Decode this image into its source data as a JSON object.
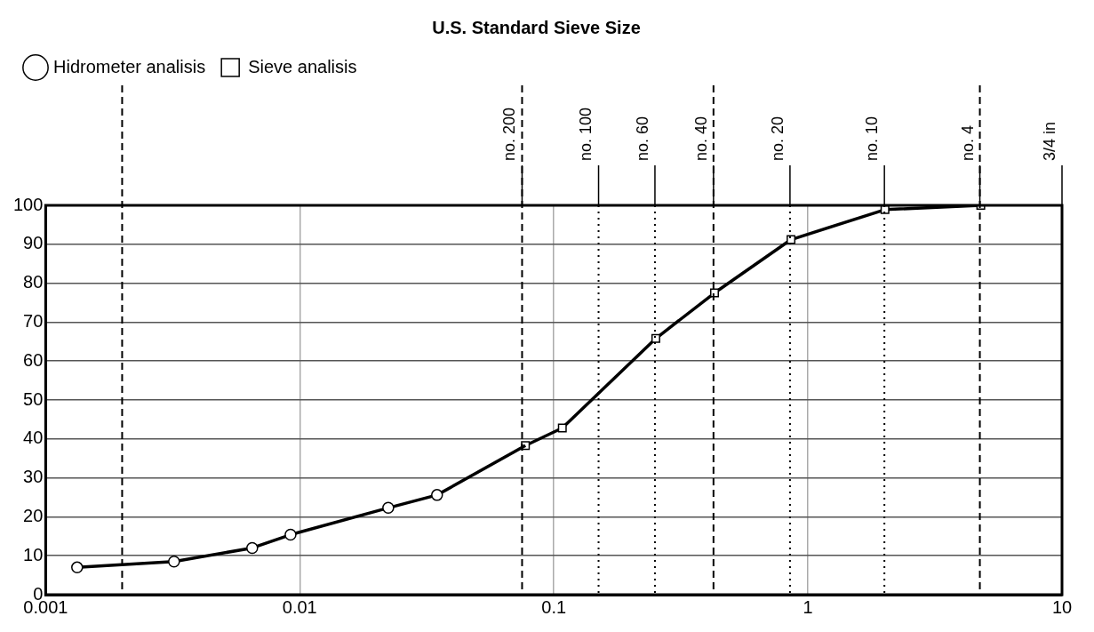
{
  "chart_data": {
    "type": "line",
    "title": "U.S. Standard Sieve Size",
    "xlim": [
      0.001,
      10
    ],
    "xticks": [
      0.001,
      0.01,
      0.1,
      1,
      10
    ],
    "ylim": [
      0,
      100
    ],
    "yticks": [
      0,
      10,
      20,
      30,
      40,
      50,
      60,
      70,
      80,
      90,
      100
    ],
    "log": "x",
    "grid": true,
    "legend": "top left",
    "series": [
      {
        "name": "Hidrometer analisis",
        "color": "#000000",
        "marker": "circle",
        "x": [
          0.00133,
          0.0032,
          0.0065,
          0.0092,
          0.0223,
          0.0347
        ],
        "values": [
          7,
          8.5,
          12,
          15.4,
          22.3,
          25.6
        ]
      },
      {
        "type": "line",
        "color": "#000000",
        "x": [
          0.0347,
          0.0773
        ],
        "values": [
          25.6,
          38.3
        ]
      },
      {
        "name": "Sieve analisis",
        "color": "#000000",
        "marker": "square",
        "x": [
          0.0773,
          0.108,
          0.252,
          0.429,
          0.858,
          2.01,
          4.79
        ],
        "values": [
          38.3,
          42.8,
          65.8,
          77.5,
          91.2,
          98.9,
          100
        ]
      }
    ],
    "ref_lines": [
      {
        "axis": "x",
        "value": 0.002,
        "line_style": "dashed"
      },
      {
        "axis": "x",
        "value": 0.075,
        "label": "no. 200",
        "line_style": "dashed"
      },
      {
        "axis": "x",
        "value": 0.15,
        "label": "no. 100",
        "line_style": "dotted"
      },
      {
        "axis": "x",
        "value": 0.25,
        "label": "no. 60",
        "line_style": "dotted"
      },
      {
        "axis": "x",
        "value": 0.425,
        "label": "no. 40",
        "line_style": "dashed"
      },
      {
        "axis": "x",
        "value": 0.85,
        "label": "no. 20",
        "line_style": "dotted"
      },
      {
        "axis": "x",
        "value": 2,
        "label": "no. 10",
        "line_style": "dotted"
      },
      {
        "axis": "x",
        "value": 4.75,
        "label": "no. 4",
        "line_style": "dashed"
      },
      {
        "axis": "x",
        "value": 10,
        "label": "3/4 in",
        "line_style": "solid"
      }
    ]
  }
}
